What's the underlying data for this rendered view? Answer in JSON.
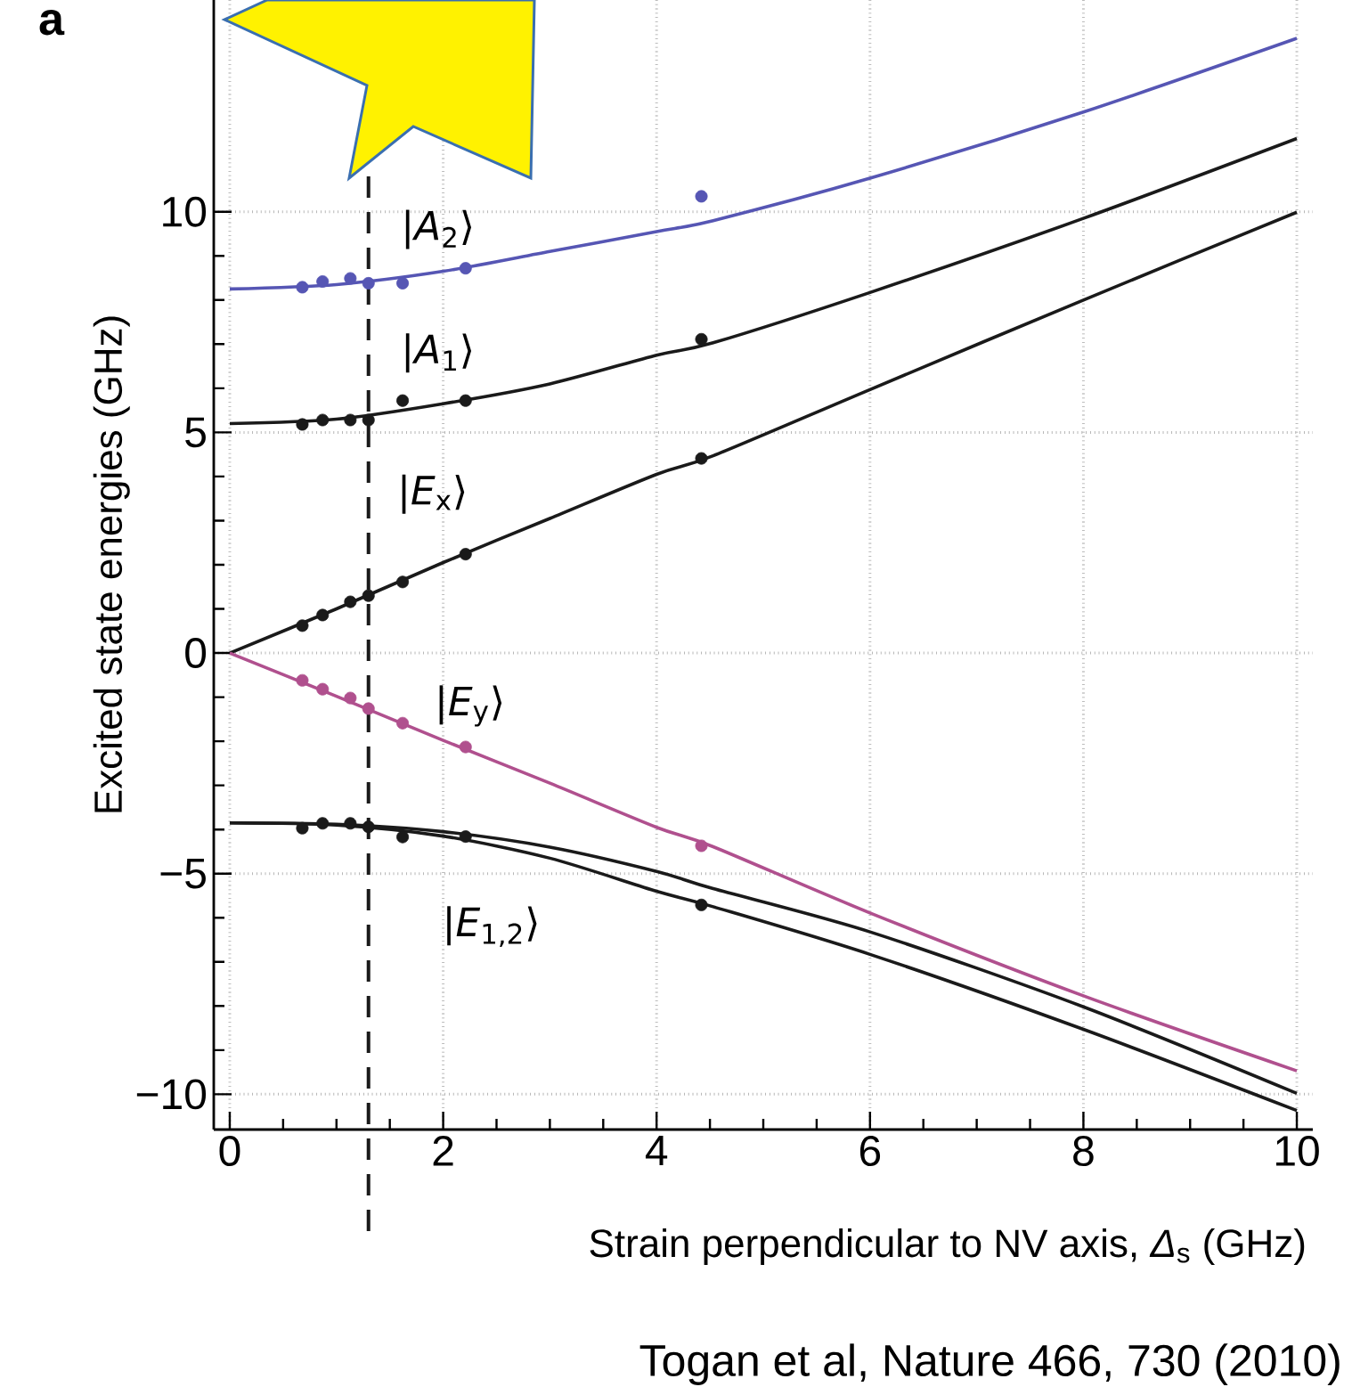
{
  "chart_data": {
    "type": "line",
    "xlabel": "Strain perpendicular to NV axis, *Δ*$_{s}$ (GHz)",
    "ylabel": "Excited state energies (GHz)",
    "annotations": [
      "a",
      "Togan et al, Nature 466, 730 (2010)"
    ],
    "xlim": [
      -0.15,
      10.15
    ],
    "ylim": [
      -10.8,
      14.8
    ],
    "xticks": [
      0,
      2,
      4,
      6,
      8,
      10
    ],
    "yticks": [
      {
        "value": -10,
        "label": "−10"
      },
      {
        "value": -5,
        "label": "−5"
      },
      0,
      5,
      10
    ],
    "grid": true,
    "ref_lines": [
      {
        "axis": "x",
        "value": 1.3,
        "color": "#1a1a1a",
        "line_style": "dashed"
      }
    ],
    "series": [
      {
        "name": "|*A*$_{2}$⟩",
        "color": "#5656b4",
        "x": [
          0,
          1,
          2,
          3,
          4,
          4.53,
          6,
          8,
          10
        ],
        "values": [
          8.25,
          8.35,
          8.65,
          9.1,
          9.55,
          9.8,
          10.76,
          12.26,
          13.93
        ]
      },
      {
        "name": "|*A*$_{1}$⟩",
        "color": "#1a1a1a",
        "x": [
          0,
          1,
          2,
          3,
          4,
          4.53,
          6,
          8,
          10
        ],
        "values": [
          5.2,
          5.3,
          5.65,
          6.1,
          6.75,
          7.03,
          8.17,
          9.85,
          11.66
        ]
      },
      {
        "name": "|*E*$_{x}$⟩",
        "color": "#1a1a1a",
        "x": [
          0,
          1,
          2,
          3,
          4,
          4.53,
          6,
          8,
          10
        ],
        "values": [
          0,
          1.0,
          2.05,
          3.05,
          4.05,
          4.47,
          5.97,
          8.0,
          9.99
        ]
      },
      {
        "name": "|*E*$_{y}$⟩",
        "color": "#b0508e",
        "x": [
          0,
          1,
          2,
          3,
          4,
          4.53,
          6,
          8,
          10
        ],
        "values": [
          0,
          -0.98,
          -1.98,
          -2.95,
          -3.95,
          -4.39,
          -5.89,
          -7.77,
          -9.47
        ]
      },
      {
        "name": "|*E*$_{1,2}$⟩",
        "color": "#1a1a1a",
        "x": [
          0,
          1,
          2,
          3,
          4,
          4.53,
          6,
          8,
          10
        ],
        "values": [
          -3.85,
          -3.88,
          -4.05,
          -4.4,
          -4.95,
          -5.34,
          -6.32,
          -8.02,
          -9.98
        ]
      },
      {
        "color": "#1a1a1a",
        "x": [
          0,
          1,
          2,
          3,
          4,
          4.53,
          6,
          8,
          10
        ],
        "values": [
          -3.85,
          -3.9,
          -4.15,
          -4.65,
          -5.4,
          -5.75,
          -6.83,
          -8.53,
          -10.37
        ]
      },
      {
        "type": "scatter",
        "marker": "circle",
        "color": "#5656b4",
        "x": [
          0.68,
          0.87,
          1.13,
          1.3,
          1.62,
          2.21,
          4.42
        ],
        "values": [
          8.29,
          8.42,
          8.49,
          8.38,
          8.38,
          8.72,
          10.35
        ]
      },
      {
        "type": "scatter",
        "marker": "circle",
        "color": "#1a1a1a",
        "x": [
          0.68,
          0.87,
          1.13,
          1.3,
          1.62,
          2.21,
          4.42
        ],
        "values": [
          5.18,
          5.28,
          5.28,
          5.28,
          5.72,
          5.72,
          7.11
        ]
      },
      {
        "type": "scatter",
        "marker": "circle",
        "color": "#1a1a1a",
        "x": [
          0.68,
          0.87,
          1.13,
          1.3,
          1.62,
          2.21,
          4.42
        ],
        "values": [
          0.62,
          0.86,
          1.16,
          1.3,
          1.61,
          2.24,
          4.41
        ]
      },
      {
        "type": "scatter",
        "marker": "circle",
        "color": "#b0508e",
        "x": [
          0.68,
          0.87,
          1.13,
          1.3,
          1.62,
          2.21,
          4.42
        ],
        "values": [
          -0.62,
          -0.82,
          -1.02,
          -1.26,
          -1.59,
          -2.13,
          -4.37
        ]
      },
      {
        "type": "scatter",
        "marker": "circle",
        "color": "#1a1a1a",
        "x": [
          0.68,
          0.87,
          1.13,
          1.3,
          1.62,
          2.21,
          4.42
        ],
        "values": [
          -3.97,
          -3.86,
          -3.86,
          -3.94,
          -4.17,
          -4.16,
          -5.71
        ]
      }
    ]
  }
}
